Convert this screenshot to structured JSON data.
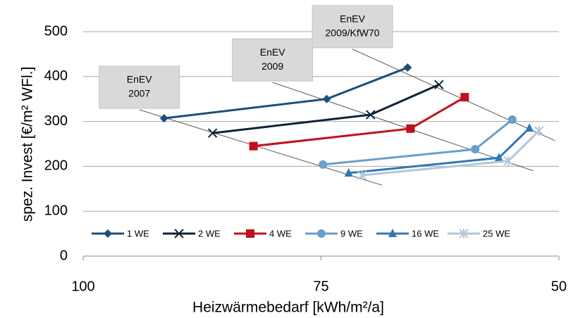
{
  "chart_data": {
    "type": "line",
    "xlabel": "Heizwärmebedarf [kWh/m²/a]",
    "ylabel": "spez. Invest [€/m² WFl.]",
    "xlim": [
      100,
      50
    ],
    "xticks": [
      100,
      75,
      50
    ],
    "ylim": [
      0,
      500
    ],
    "yticks": [
      0,
      100,
      200,
      300,
      400,
      500
    ],
    "grid": true,
    "legend": "bottom",
    "series": [
      {
        "name": "1 WE",
        "color": "#1b4f7a",
        "marker": "diamond",
        "x": [
          91.5,
          74.4,
          65.9
        ],
        "values": [
          307,
          350,
          420
        ]
      },
      {
        "name": "2 WE",
        "color": "#0f2236",
        "marker": "x",
        "x": [
          86.4,
          69.8,
          62.6
        ],
        "values": [
          274,
          315,
          382
        ]
      },
      {
        "name": "4 WE",
        "color": "#c0101e",
        "marker": "square",
        "x": [
          82.1,
          65.6,
          59.9
        ],
        "values": [
          245,
          284,
          354
        ]
      },
      {
        "name": "9 WE",
        "color": "#6b9ec8",
        "marker": "circle",
        "x": [
          74.8,
          58.8,
          54.9
        ],
        "values": [
          204,
          238,
          304
        ]
      },
      {
        "name": "16 WE",
        "color": "#2f78b4",
        "marker": "triangle",
        "x": [
          72.1,
          56.3,
          53.1
        ],
        "values": [
          185,
          219,
          285
        ]
      },
      {
        "name": "25 WE",
        "color": "#b3c6da",
        "marker": "star",
        "x": [
          70.7,
          55.3,
          52.1
        ],
        "values": [
          180,
          212,
          279
        ]
      }
    ],
    "reference_lines": [
      {
        "label": [
          "EnEV",
          "2007"
        ],
        "x": [
          94.1,
          68.6
        ],
        "y": [
          326,
          158
        ]
      },
      {
        "label": [
          "EnEV",
          "2009"
        ],
        "x": [
          80.1,
          52.7
        ],
        "y": [
          387,
          190
        ]
      },
      {
        "label": [
          "EnEV",
          "2009/KfW70"
        ],
        "x": [
          71.7,
          50.4
        ],
        "y": [
          461,
          257
        ]
      }
    ]
  }
}
